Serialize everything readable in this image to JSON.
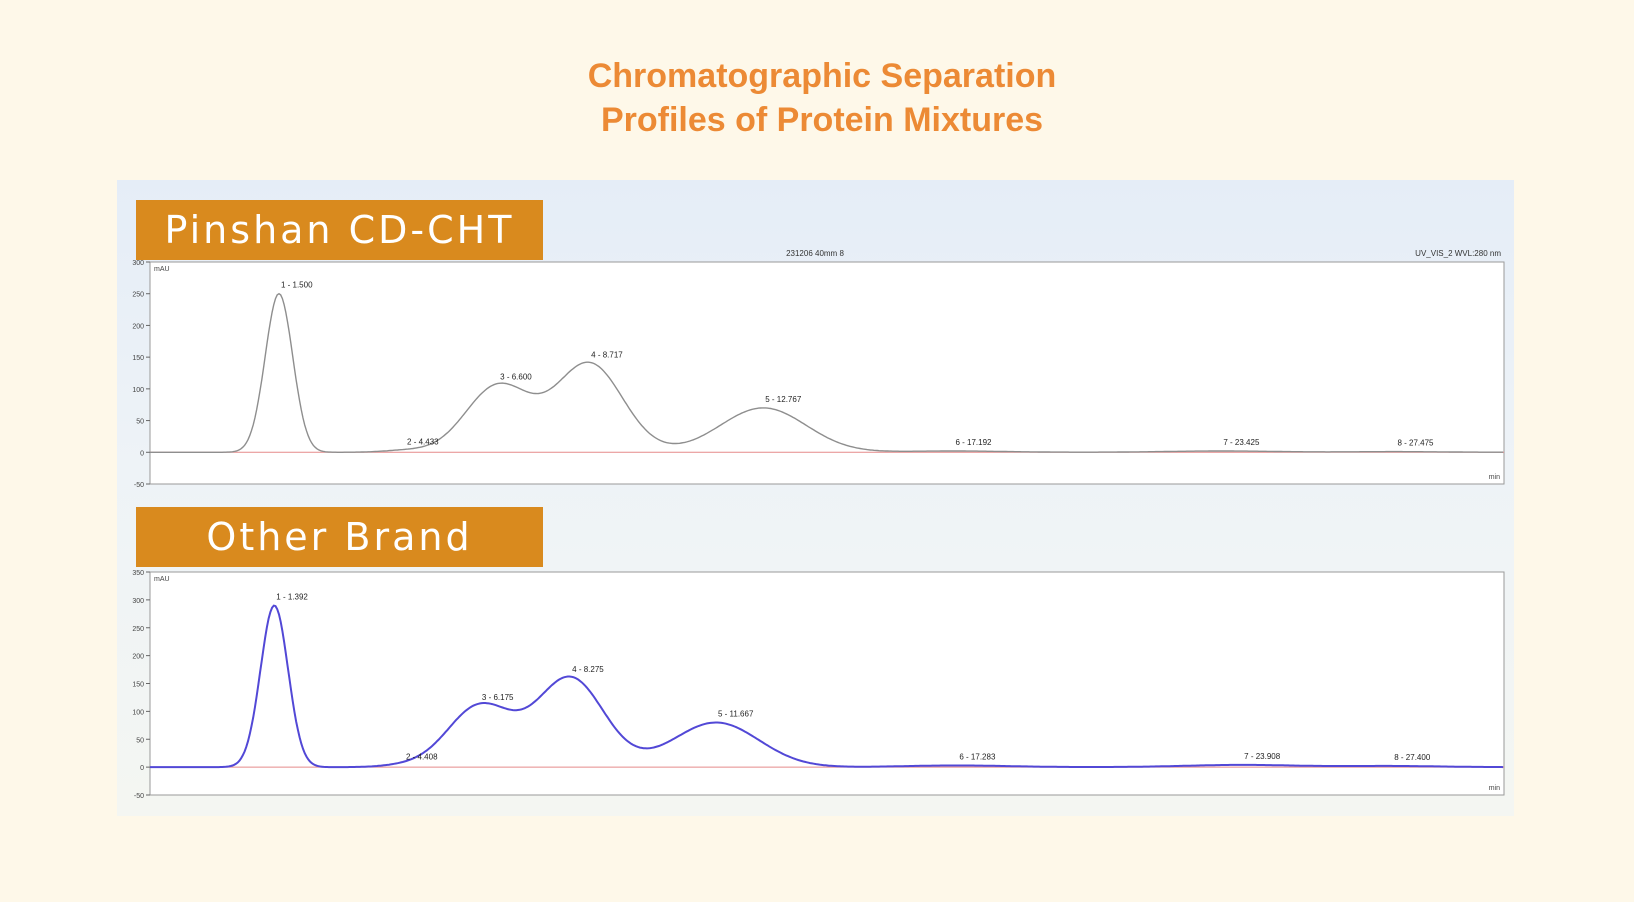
{
  "title_lines": [
    "Chromatographic Separation",
    "Profiles of Protein Mixtures"
  ],
  "colors": {
    "background": "#fef8e9",
    "title": "#ec8a35",
    "label_box": "#d98a1e",
    "trace_top": "#8e8e8e",
    "trace_bottom": "#5248d6",
    "baseline": "#e58a8a"
  },
  "chart_data": [
    {
      "type": "line",
      "panel_label": "Pinshan CD-CHT",
      "header_center": "231206 40mm 8",
      "header_right": "UV_VIS_2 WVL:280 nm",
      "ylabel": "mAU",
      "xlabel": "min",
      "ylim": [
        -50,
        300
      ],
      "yticks": [
        -50,
        0,
        50,
        100,
        150,
        200,
        250,
        300
      ],
      "ytick_labels": [
        "-50",
        "0",
        "50",
        "100",
        "150",
        "200",
        "250",
        "300"
      ],
      "xlim": [
        -1.5,
        30
      ],
      "peaks": [
        {
          "label": "1 - 1.500",
          "rt": 1.5,
          "height": 250
        },
        {
          "label": "2 - 4.433",
          "rt": 4.433,
          "height": 3
        },
        {
          "label": "3 - 6.600",
          "rt": 6.6,
          "height": 105
        },
        {
          "label": "4 - 8.717",
          "rt": 8.717,
          "height": 140
        },
        {
          "label": "5 - 12.767",
          "rt": 12.767,
          "height": 70
        },
        {
          "label": "6 - 17.192",
          "rt": 17.192,
          "height": 2
        },
        {
          "label": "7 - 23.425",
          "rt": 23.425,
          "height": 2
        },
        {
          "label": "8 - 27.475",
          "rt": 27.475,
          "height": 1
        }
      ]
    },
    {
      "type": "line",
      "panel_label": "Other Brand",
      "ylabel": "mAU",
      "xlabel": "min",
      "ylim": [
        -50,
        350
      ],
      "yticks": [
        -50,
        0,
        50,
        100,
        150,
        200,
        250,
        300,
        350
      ],
      "ytick_labels": [
        "-50",
        "0",
        "50",
        "100",
        "150",
        "200",
        "250",
        "300",
        "350"
      ],
      "xlim": [
        -1.5,
        30
      ],
      "peaks": [
        {
          "label": "1 - 1.392",
          "rt": 1.392,
          "height": 290
        },
        {
          "label": "2 - 4.408",
          "rt": 4.408,
          "height": 3
        },
        {
          "label": "3 - 6.175",
          "rt": 6.175,
          "height": 110
        },
        {
          "label": "4 - 8.275",
          "rt": 8.275,
          "height": 160
        },
        {
          "label": "5 - 11.667",
          "rt": 11.667,
          "height": 80
        },
        {
          "label": "6 - 17.283",
          "rt": 17.283,
          "height": 3
        },
        {
          "label": "7 - 23.908",
          "rt": 23.908,
          "height": 4
        },
        {
          "label": "8 - 27.400",
          "rt": 27.4,
          "height": 2
        }
      ]
    }
  ]
}
